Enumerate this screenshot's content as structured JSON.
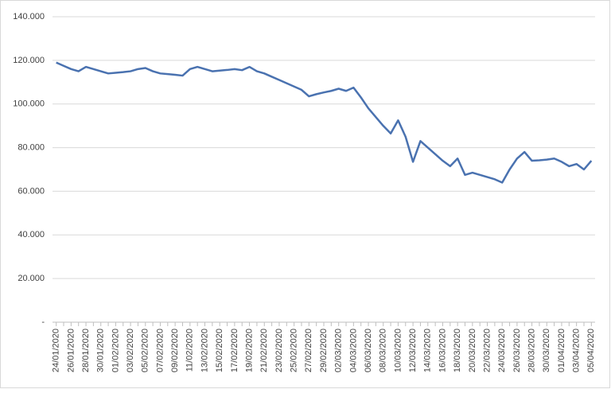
{
  "chart_data": {
    "type": "line",
    "categories": [
      "24/01/2020",
      null,
      "26/01/2020",
      null,
      "28/01/2020",
      null,
      "30/01/2020",
      null,
      "01/02/2020",
      null,
      "03/02/2020",
      null,
      "05/02/2020",
      null,
      "07/02/2020",
      null,
      "09/02/2020",
      null,
      "11/02/2020",
      null,
      "13/02/2020",
      null,
      "15/02/2020",
      null,
      "17/02/2020",
      null,
      "19/02/2020",
      null,
      "21/02/2020",
      null,
      "23/02/2020",
      null,
      "25/02/2020",
      null,
      "27/02/2020",
      null,
      "29/02/2020",
      null,
      "02/03/2020",
      null,
      "04/03/2020",
      null,
      "06/03/2020",
      null,
      "08/03/2020",
      null,
      "10/03/2020",
      null,
      "12/03/2020",
      null,
      "14/03/2020",
      null,
      "16/03/2020",
      null,
      "18/03/2020",
      null,
      "20/03/2020",
      null,
      "22/03/2020",
      null,
      "24/03/2020",
      null,
      "26/03/2020",
      null,
      "28/03/2020",
      null,
      "30/03/2020",
      null,
      "01/04/2020",
      null,
      "03/04/2020",
      null,
      "05/04/2020"
    ],
    "series": [
      {
        "color": "#4a72b0",
        "values": [
          119000,
          117500,
          116000,
          115000,
          117000,
          116000,
          115000,
          114000,
          114300,
          114600,
          115000,
          116000,
          116500,
          115000,
          114000,
          113700,
          113400,
          113000,
          116000,
          117000,
          116000,
          115000,
          115300,
          115600,
          116000,
          115500,
          117000,
          115000,
          114000,
          112500,
          111000,
          109500,
          108000,
          106500,
          103500,
          104500,
          105300,
          106000,
          107000,
          106000,
          107500,
          103000,
          98000,
          94000,
          90000,
          86500,
          92500,
          85000,
          73500,
          83000,
          80000,
          77000,
          74000,
          71500,
          75000,
          67500,
          68500,
          67500,
          66500,
          65500,
          64000,
          70000,
          75000,
          78000,
          74000,
          74200,
          74500,
          75000,
          73500,
          71500,
          72500,
          70000,
          74000
        ]
      }
    ],
    "ylim": [
      0,
      140000
    ],
    "yticks": [
      {
        "value": 0,
        "label": "-"
      },
      {
        "value": 20000,
        "label": "20.000"
      },
      {
        "value": 40000,
        "label": "40.000"
      },
      {
        "value": 60000,
        "label": "60.000"
      },
      {
        "value": 80000,
        "label": "80.000"
      },
      {
        "value": 100000,
        "label": "100.000"
      },
      {
        "value": 120000,
        "label": "120.000"
      },
      {
        "value": 140000,
        "label": "140.000"
      }
    ],
    "grid": true
  }
}
